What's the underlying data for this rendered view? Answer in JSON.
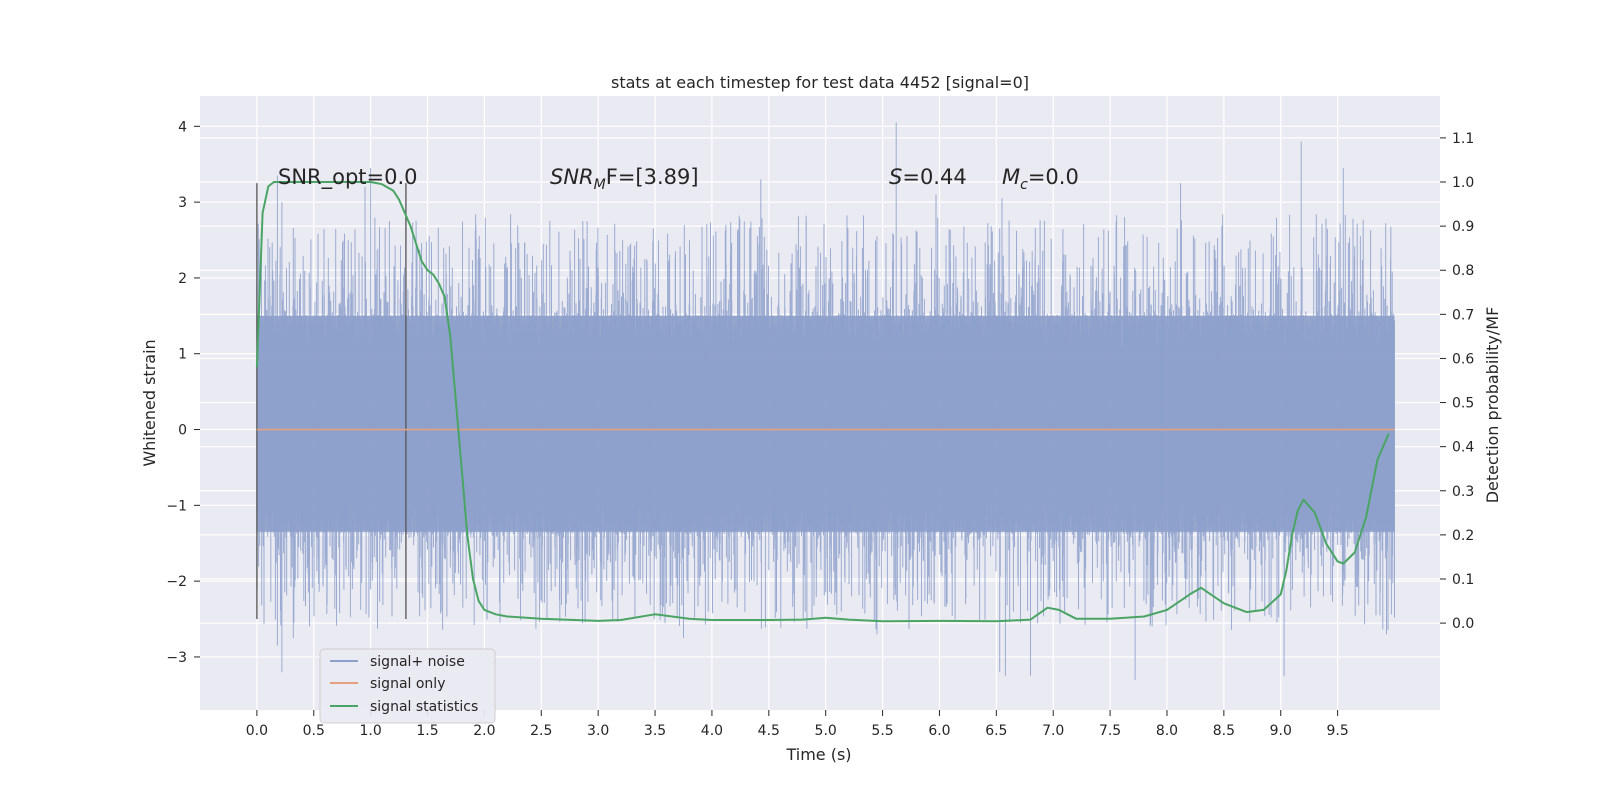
{
  "chart_data": {
    "type": "line",
    "title": "stats at each timestep for test data 4452 [signal=0]",
    "xlabel": "Time (s)",
    "ylabel_left": "Whitened strain",
    "ylabel_right": "Detection probability/MF",
    "xlim": [
      -0.5,
      10.4
    ],
    "ylim_left": [
      -3.7,
      4.4
    ],
    "ylim_right": [
      -0.197,
      1.195
    ],
    "x_ticks": [
      "0.0",
      "0.5",
      "1.0",
      "1.5",
      "2.0",
      "2.5",
      "3.0",
      "3.5",
      "4.0",
      "4.5",
      "5.0",
      "5.5",
      "6.0",
      "6.5",
      "7.0",
      "7.5",
      "8.0",
      "8.5",
      "9.0",
      "9.5"
    ],
    "y_ticks_left": [
      "4",
      "3",
      "2",
      "1",
      "0",
      "−1",
      "−2",
      "−3"
    ],
    "y_ticks_right": [
      "1.1",
      "1.0",
      "0.9",
      "0.8",
      "0.7",
      "0.6",
      "0.5",
      "0.4",
      "0.3",
      "0.2",
      "0.1",
      "0.0"
    ],
    "grid": true,
    "legend_position": "lower-left",
    "annotations": {
      "snr_opt": "SNR_opt=0.0",
      "snr_mf_main": "SNR",
      "snr_mf_sub": "M",
      "snr_mf_rest": "F=[3.89]",
      "s_italic": "S",
      "s_rest": "=0.44",
      "mc_main": "M",
      "mc_sub": "c",
      "mc_rest": "=0.0"
    },
    "vlines_x": [
      0.0,
      1.31
    ],
    "vline_range_left": [
      -2.5,
      3.25
    ],
    "series": [
      {
        "name": "signal+ noise",
        "color": "#8da0cb",
        "axis": "left",
        "x_range": [
          0.0,
          10.0
        ],
        "core_band": [
          -1.35,
          1.5
        ],
        "peaks_high": [
          [
            0.18,
            3.35
          ],
          [
            0.22,
            3.0
          ],
          [
            0.95,
            3.2
          ],
          [
            1.0,
            3.45
          ],
          [
            4.43,
            3.3
          ],
          [
            5.62,
            4.05
          ],
          [
            5.97,
            3.1
          ],
          [
            6.55,
            3.05
          ],
          [
            8.12,
            3.25
          ],
          [
            9.18,
            3.8
          ],
          [
            9.55,
            3.45
          ]
        ],
        "peaks_low": [
          [
            0.18,
            -2.85
          ],
          [
            0.22,
            -3.2
          ],
          [
            0.32,
            -2.75
          ],
          [
            3.75,
            -2.75
          ],
          [
            5.45,
            -2.7
          ],
          [
            6.53,
            -3.2
          ],
          [
            6.58,
            -3.25
          ],
          [
            6.8,
            -3.25
          ],
          [
            7.72,
            -3.3
          ],
          [
            9.03,
            -3.25
          ],
          [
            9.93,
            -2.7
          ]
        ]
      },
      {
        "name": "signal only",
        "color": "#e4a07e",
        "axis": "left",
        "x": [
          0.0,
          10.0
        ],
        "y": [
          0.0,
          0.0
        ]
      },
      {
        "name": "signal statistics",
        "color": "#4aa564",
        "axis": "right",
        "x": [
          0.0,
          0.05,
          0.1,
          0.15,
          0.2,
          0.3,
          0.5,
          0.7,
          0.9,
          1.0,
          1.1,
          1.2,
          1.25,
          1.3,
          1.35,
          1.4,
          1.45,
          1.5,
          1.55,
          1.6,
          1.65,
          1.7,
          1.75,
          1.8,
          1.85,
          1.9,
          1.95,
          2.0,
          2.1,
          2.2,
          2.5,
          3.0,
          3.2,
          3.5,
          3.8,
          4.0,
          4.5,
          4.8,
          5.0,
          5.2,
          5.5,
          6.0,
          6.5,
          6.8,
          6.95,
          7.05,
          7.2,
          7.5,
          7.8,
          8.0,
          8.2,
          8.3,
          8.5,
          8.7,
          8.85,
          9.0,
          9.05,
          9.1,
          9.15,
          9.2,
          9.3,
          9.4,
          9.5,
          9.55,
          9.65,
          9.75,
          9.85,
          9.95
        ],
        "y": [
          0.58,
          0.93,
          0.99,
          1.0,
          1.0,
          1.0,
          1.0,
          1.0,
          1.0,
          1.0,
          0.995,
          0.98,
          0.96,
          0.93,
          0.9,
          0.86,
          0.82,
          0.8,
          0.79,
          0.77,
          0.74,
          0.65,
          0.5,
          0.35,
          0.2,
          0.1,
          0.05,
          0.03,
          0.02,
          0.015,
          0.01,
          0.005,
          0.007,
          0.02,
          0.01,
          0.007,
          0.007,
          0.008,
          0.012,
          0.008,
          0.004,
          0.005,
          0.004,
          0.008,
          0.035,
          0.03,
          0.01,
          0.01,
          0.015,
          0.03,
          0.065,
          0.08,
          0.045,
          0.025,
          0.03,
          0.065,
          0.12,
          0.2,
          0.255,
          0.28,
          0.25,
          0.18,
          0.14,
          0.135,
          0.16,
          0.24,
          0.37,
          0.43
        ]
      }
    ]
  }
}
